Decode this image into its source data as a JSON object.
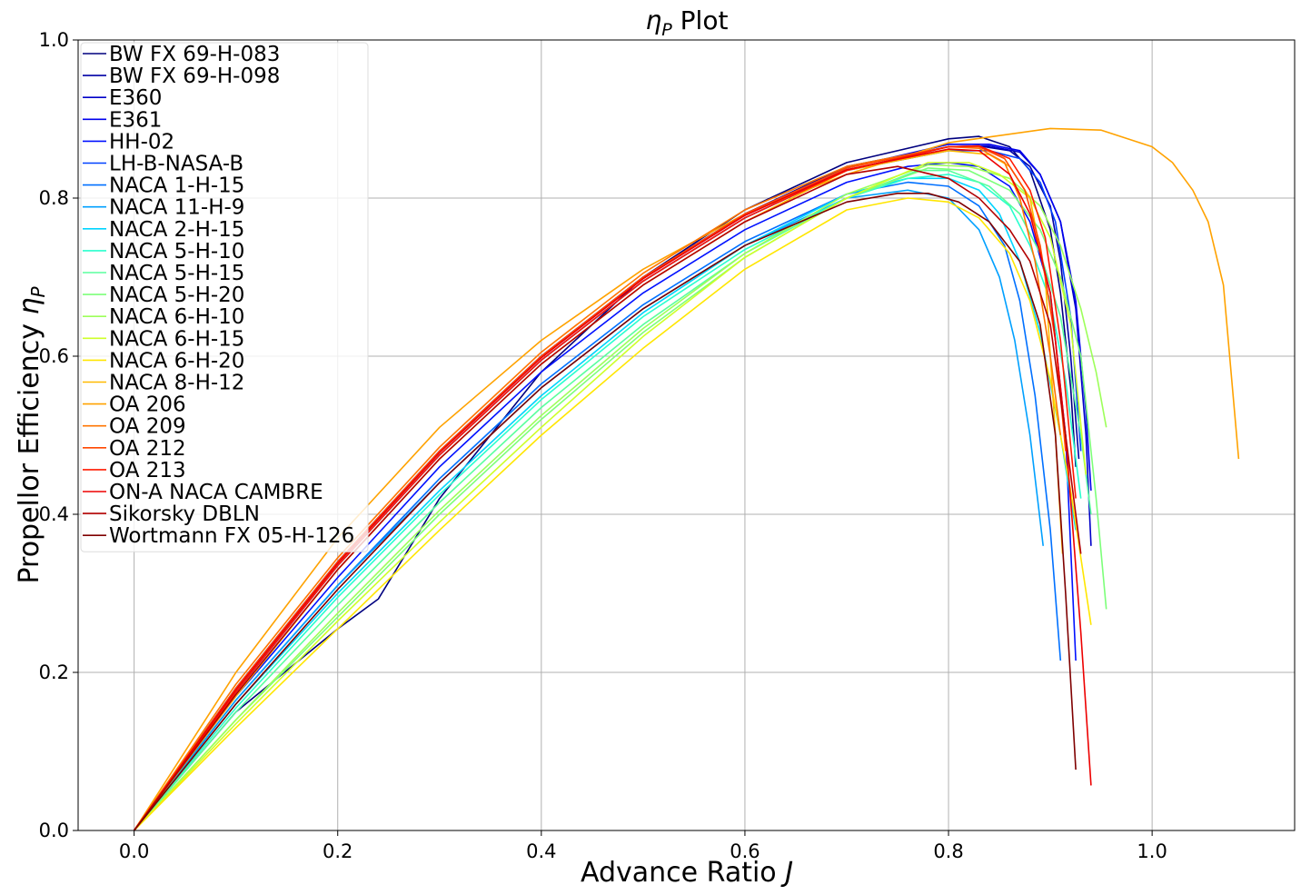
{
  "chart_data": {
    "type": "line",
    "title_symbol": "η",
    "title_subscript": "P",
    "title_rest": " Plot",
    "xlabel_text": "Advance Ratio ",
    "xlabel_symbol": "J",
    "ylabel_text": "Propellor Efficiency ",
    "ylabel_symbol": "η",
    "ylabel_subscript": "P",
    "xlim": [
      -0.055,
      1.14
    ],
    "ylim": [
      0,
      1.0
    ],
    "xticks": [
      0.0,
      0.2,
      0.4,
      0.6,
      0.8,
      1.0
    ],
    "xtick_labels": [
      "0.0",
      "0.2",
      "0.4",
      "0.6",
      "0.8",
      "1.0"
    ],
    "yticks": [
      0.0,
      0.2,
      0.4,
      0.6,
      0.8,
      1.0
    ],
    "ytick_labels": [
      "0.0",
      "0.2",
      "0.4",
      "0.6",
      "0.8",
      "1.0"
    ],
    "grid": true,
    "legend_position": "upper-left",
    "series": [
      {
        "name": "BW FX 69-H-083",
        "color": "#00007f",
        "x": [
          0,
          0.1,
          0.2,
          0.24,
          0.3,
          0.4,
          0.5,
          0.6,
          0.7,
          0.8,
          0.83,
          0.86,
          0.88,
          0.9,
          0.91,
          0.92,
          0.925
        ],
        "y": [
          0,
          0.15,
          0.255,
          0.293,
          0.42,
          0.58,
          0.7,
          0.785,
          0.845,
          0.875,
          0.878,
          0.865,
          0.835,
          0.76,
          0.68,
          0.56,
          0.46
        ]
      },
      {
        "name": "BW FX 69-H-098",
        "color": "#0000a4",
        "x": [
          0,
          0.1,
          0.2,
          0.3,
          0.4,
          0.5,
          0.6,
          0.7,
          0.8,
          0.83,
          0.86,
          0.88,
          0.9,
          0.91,
          0.92,
          0.928
        ],
        "y": [
          0,
          0.18,
          0.34,
          0.48,
          0.6,
          0.7,
          0.78,
          0.84,
          0.865,
          0.866,
          0.86,
          0.84,
          0.79,
          0.72,
          0.6,
          0.47
        ]
      },
      {
        "name": "E360",
        "color": "#0000c8",
        "x": [
          0,
          0.1,
          0.2,
          0.3,
          0.4,
          0.5,
          0.6,
          0.7,
          0.8,
          0.84,
          0.87,
          0.89,
          0.91,
          0.925,
          0.935,
          0.94
        ],
        "y": [
          0,
          0.175,
          0.335,
          0.475,
          0.595,
          0.695,
          0.775,
          0.835,
          0.865,
          0.866,
          0.858,
          0.83,
          0.77,
          0.66,
          0.5,
          0.36
        ]
      },
      {
        "name": "E361",
        "color": "#0000ed",
        "x": [
          0,
          0.1,
          0.2,
          0.3,
          0.4,
          0.5,
          0.6,
          0.7,
          0.8,
          0.84,
          0.87,
          0.89,
          0.91,
          0.925,
          0.935,
          0.94
        ],
        "y": [
          0,
          0.18,
          0.34,
          0.48,
          0.6,
          0.7,
          0.78,
          0.838,
          0.868,
          0.868,
          0.86,
          0.83,
          0.77,
          0.67,
          0.53,
          0.43
        ]
      },
      {
        "name": "HH-02",
        "color": "#0010ff",
        "x": [
          0,
          0.1,
          0.2,
          0.3,
          0.4,
          0.5,
          0.6,
          0.7,
          0.76,
          0.8,
          0.83,
          0.86,
          0.88,
          0.9,
          0.915,
          0.925
        ],
        "y": [
          0,
          0.17,
          0.32,
          0.46,
          0.58,
          0.68,
          0.76,
          0.82,
          0.84,
          0.845,
          0.84,
          0.815,
          0.77,
          0.68,
          0.5,
          0.215
        ]
      },
      {
        "name": "LH-B-NASA-B",
        "color": "#0040ff",
        "x": [
          0,
          0.1,
          0.2,
          0.3,
          0.4,
          0.5,
          0.6,
          0.7,
          0.8,
          0.84,
          0.87,
          0.89,
          0.905,
          0.92,
          0.93
        ],
        "y": [
          0,
          0.175,
          0.335,
          0.475,
          0.595,
          0.695,
          0.775,
          0.835,
          0.86,
          0.86,
          0.85,
          0.82,
          0.77,
          0.65,
          0.48
        ]
      },
      {
        "name": "NACA 1-H-15",
        "color": "#0070ff",
        "x": [
          0,
          0.1,
          0.2,
          0.3,
          0.4,
          0.5,
          0.6,
          0.7,
          0.76,
          0.8,
          0.83,
          0.855,
          0.87,
          0.885,
          0.9,
          0.91
        ],
        "y": [
          0,
          0.165,
          0.31,
          0.445,
          0.565,
          0.665,
          0.745,
          0.805,
          0.82,
          0.815,
          0.79,
          0.74,
          0.67,
          0.55,
          0.38,
          0.215
        ]
      },
      {
        "name": "NACA 11-H-9",
        "color": "#00a0ff",
        "x": [
          0,
          0.1,
          0.2,
          0.3,
          0.4,
          0.5,
          0.6,
          0.7,
          0.76,
          0.8,
          0.83,
          0.85,
          0.865,
          0.88,
          0.893
        ],
        "y": [
          0,
          0.165,
          0.31,
          0.44,
          0.56,
          0.66,
          0.74,
          0.8,
          0.81,
          0.8,
          0.76,
          0.7,
          0.62,
          0.5,
          0.36
        ]
      },
      {
        "name": "NACA 2-H-15",
        "color": "#00d4ff",
        "x": [
          0,
          0.1,
          0.2,
          0.3,
          0.4,
          0.5,
          0.6,
          0.7,
          0.76,
          0.8,
          0.83,
          0.85,
          0.87,
          0.89,
          0.91,
          0.925
        ],
        "y": [
          0,
          0.16,
          0.3,
          0.43,
          0.55,
          0.655,
          0.74,
          0.805,
          0.825,
          0.825,
          0.81,
          0.78,
          0.72,
          0.63,
          0.5,
          0.38
        ]
      },
      {
        "name": "NACA 5-H-10",
        "color": "#29ffce",
        "x": [
          0,
          0.1,
          0.2,
          0.3,
          0.4,
          0.5,
          0.6,
          0.7,
          0.76,
          0.8,
          0.83,
          0.86,
          0.88,
          0.9,
          0.915,
          0.93
        ],
        "y": [
          0,
          0.155,
          0.295,
          0.425,
          0.545,
          0.65,
          0.735,
          0.8,
          0.825,
          0.83,
          0.82,
          0.79,
          0.74,
          0.67,
          0.57,
          0.42
        ]
      },
      {
        "name": "NACA 5-H-15",
        "color": "#5aff9d",
        "x": [
          0,
          0.1,
          0.2,
          0.3,
          0.4,
          0.5,
          0.6,
          0.7,
          0.77,
          0.8,
          0.84,
          0.87,
          0.89,
          0.91,
          0.93,
          0.94
        ],
        "y": [
          0,
          0.15,
          0.285,
          0.415,
          0.535,
          0.64,
          0.73,
          0.8,
          0.835,
          0.835,
          0.815,
          0.78,
          0.73,
          0.65,
          0.5,
          0.4
        ]
      },
      {
        "name": "NACA 5-H-20",
        "color": "#7dff7a",
        "x": [
          0,
          0.1,
          0.2,
          0.3,
          0.4,
          0.5,
          0.6,
          0.7,
          0.78,
          0.82,
          0.86,
          0.89,
          0.91,
          0.93,
          0.945,
          0.955
        ],
        "y": [
          0,
          0.14,
          0.27,
          0.4,
          0.52,
          0.63,
          0.725,
          0.8,
          0.838,
          0.835,
          0.81,
          0.76,
          0.7,
          0.6,
          0.42,
          0.28
        ]
      },
      {
        "name": "NACA 6-H-10",
        "color": "#9dff5a",
        "x": [
          0,
          0.1,
          0.2,
          0.3,
          0.4,
          0.5,
          0.6,
          0.7,
          0.78,
          0.82,
          0.86,
          0.89,
          0.91,
          0.93,
          0.945,
          0.955
        ],
        "y": [
          0,
          0.14,
          0.275,
          0.405,
          0.525,
          0.635,
          0.73,
          0.805,
          0.842,
          0.84,
          0.825,
          0.79,
          0.74,
          0.66,
          0.58,
          0.51
        ]
      },
      {
        "name": "NACA 6-H-15",
        "color": "#ceff29",
        "x": [
          0,
          0.1,
          0.2,
          0.3,
          0.4,
          0.5,
          0.6,
          0.7,
          0.78,
          0.82,
          0.85,
          0.88,
          0.9,
          0.92,
          0.935
        ],
        "y": [
          0,
          0.135,
          0.265,
          0.39,
          0.51,
          0.625,
          0.725,
          0.8,
          0.845,
          0.845,
          0.83,
          0.8,
          0.75,
          0.64,
          0.45
        ]
      },
      {
        "name": "NACA 6-H-20",
        "color": "#ffe600",
        "x": [
          0,
          0.1,
          0.2,
          0.3,
          0.4,
          0.5,
          0.6,
          0.7,
          0.76,
          0.8,
          0.83,
          0.86,
          0.88,
          0.9,
          0.92,
          0.94
        ],
        "y": [
          0,
          0.13,
          0.255,
          0.38,
          0.5,
          0.61,
          0.71,
          0.785,
          0.8,
          0.795,
          0.775,
          0.73,
          0.67,
          0.57,
          0.43,
          0.26
        ]
      },
      {
        "name": "NACA 8-H-12",
        "color": "#ffb900",
        "x": [
          0,
          0.1,
          0.2,
          0.3,
          0.4,
          0.5,
          0.6,
          0.7,
          0.8,
          0.84,
          0.86,
          0.88,
          0.895,
          0.905,
          0.912
        ],
        "y": [
          0,
          0.17,
          0.33,
          0.47,
          0.59,
          0.69,
          0.77,
          0.835,
          0.86,
          0.855,
          0.84,
          0.8,
          0.7,
          0.5,
          0.35
        ]
      },
      {
        "name": "OA 206",
        "color": "#ffa200",
        "x": [
          0,
          0.1,
          0.2,
          0.3,
          0.4,
          0.5,
          0.6,
          0.7,
          0.8,
          0.9,
          0.95,
          1.0,
          1.02,
          1.04,
          1.055,
          1.07,
          1.085
        ],
        "y": [
          0,
          0.2,
          0.37,
          0.51,
          0.62,
          0.71,
          0.78,
          0.83,
          0.87,
          0.888,
          0.886,
          0.865,
          0.845,
          0.81,
          0.77,
          0.69,
          0.47
        ]
      },
      {
        "name": "OA 209",
        "color": "#ff7400",
        "x": [
          0,
          0.1,
          0.2,
          0.3,
          0.4,
          0.5,
          0.6,
          0.7,
          0.8,
          0.83,
          0.855,
          0.87,
          0.885,
          0.9,
          0.91
        ],
        "y": [
          0,
          0.185,
          0.345,
          0.485,
          0.605,
          0.705,
          0.785,
          0.84,
          0.865,
          0.863,
          0.845,
          0.8,
          0.72,
          0.6,
          0.5
        ]
      },
      {
        "name": "OA 212",
        "color": "#ff4700",
        "x": [
          0,
          0.1,
          0.2,
          0.3,
          0.4,
          0.5,
          0.6,
          0.7,
          0.8,
          0.83,
          0.855,
          0.875,
          0.89,
          0.905,
          0.915
        ],
        "y": [
          0,
          0.18,
          0.34,
          0.48,
          0.6,
          0.7,
          0.78,
          0.838,
          0.865,
          0.865,
          0.85,
          0.81,
          0.74,
          0.62,
          0.48
        ]
      },
      {
        "name": "OA 213",
        "color": "#ff1a00",
        "x": [
          0,
          0.1,
          0.2,
          0.3,
          0.4,
          0.5,
          0.6,
          0.7,
          0.8,
          0.83,
          0.86,
          0.88,
          0.895,
          0.91,
          0.925
        ],
        "y": [
          0,
          0.175,
          0.335,
          0.475,
          0.595,
          0.695,
          0.775,
          0.835,
          0.865,
          0.866,
          0.85,
          0.81,
          0.75,
          0.62,
          0.42
        ]
      },
      {
        "name": "ON-A NACA CAMBRE",
        "color": "#ed0000",
        "x": [
          0,
          0.1,
          0.2,
          0.3,
          0.4,
          0.5,
          0.6,
          0.7,
          0.8,
          0.83,
          0.86,
          0.88,
          0.9,
          0.915,
          0.93,
          0.94
        ],
        "y": [
          0,
          0.178,
          0.338,
          0.478,
          0.598,
          0.698,
          0.778,
          0.836,
          0.862,
          0.86,
          0.83,
          0.78,
          0.68,
          0.5,
          0.25,
          0.057
        ]
      },
      {
        "name": "Sikorsky DBLN",
        "color": "#b20000",
        "x": [
          0,
          0.1,
          0.2,
          0.3,
          0.4,
          0.5,
          0.6,
          0.7,
          0.75,
          0.8,
          0.83,
          0.86,
          0.88,
          0.9,
          0.915,
          0.93
        ],
        "y": [
          0,
          0.172,
          0.33,
          0.47,
          0.59,
          0.69,
          0.77,
          0.83,
          0.84,
          0.825,
          0.8,
          0.76,
          0.72,
          0.64,
          0.5,
          0.35
        ]
      },
      {
        "name": "Wortmann FX 05-H-126",
        "color": "#7f0000",
        "x": [
          0,
          0.1,
          0.2,
          0.3,
          0.4,
          0.5,
          0.6,
          0.7,
          0.75,
          0.78,
          0.81,
          0.84,
          0.87,
          0.89,
          0.905,
          0.915,
          0.925
        ],
        "y": [
          0,
          0.16,
          0.305,
          0.44,
          0.56,
          0.66,
          0.74,
          0.795,
          0.806,
          0.806,
          0.795,
          0.77,
          0.72,
          0.64,
          0.5,
          0.3,
          0.077
        ]
      }
    ]
  }
}
